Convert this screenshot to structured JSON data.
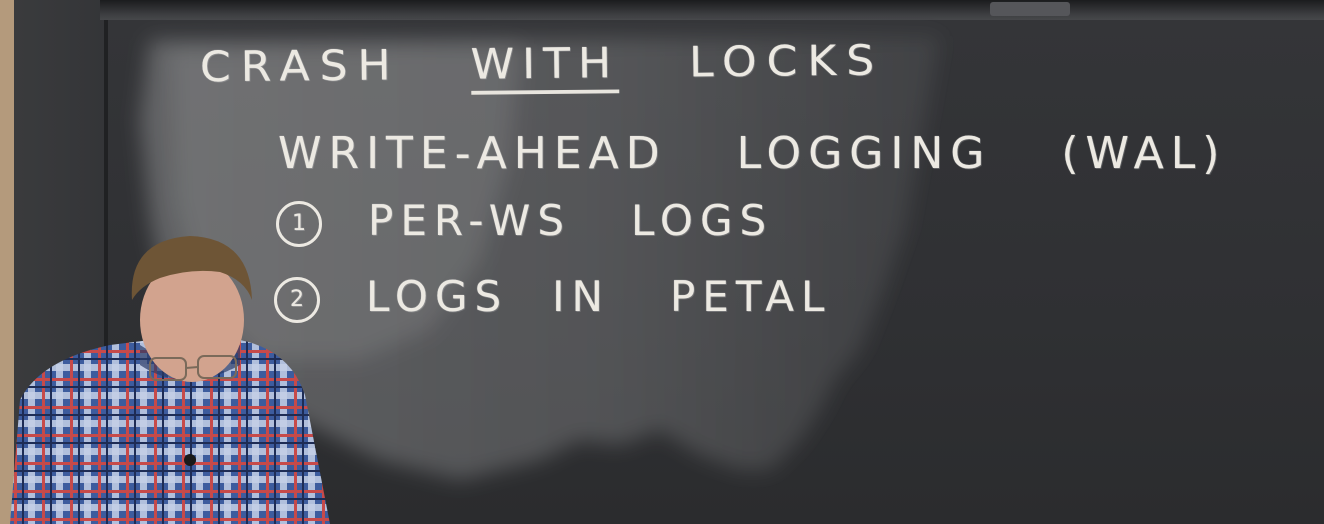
{
  "board": {
    "title": {
      "part1": "CRASH",
      "part2": "WITH",
      "part3": "LOCKS"
    },
    "subtitle": {
      "part1": "WRITE-AHEAD",
      "part2": "LOGGING",
      "part3": "(WAL)"
    },
    "items": [
      {
        "num": "1",
        "part1": "PER-WS",
        "part2": "LOGS"
      },
      {
        "num": "2",
        "part1": "LOGS",
        "part2": "IN",
        "part3": "PETAL"
      }
    ]
  },
  "colors": {
    "chalk": "#ece9e2",
    "board": "#2f3033",
    "wall": "#b49a7c"
  }
}
